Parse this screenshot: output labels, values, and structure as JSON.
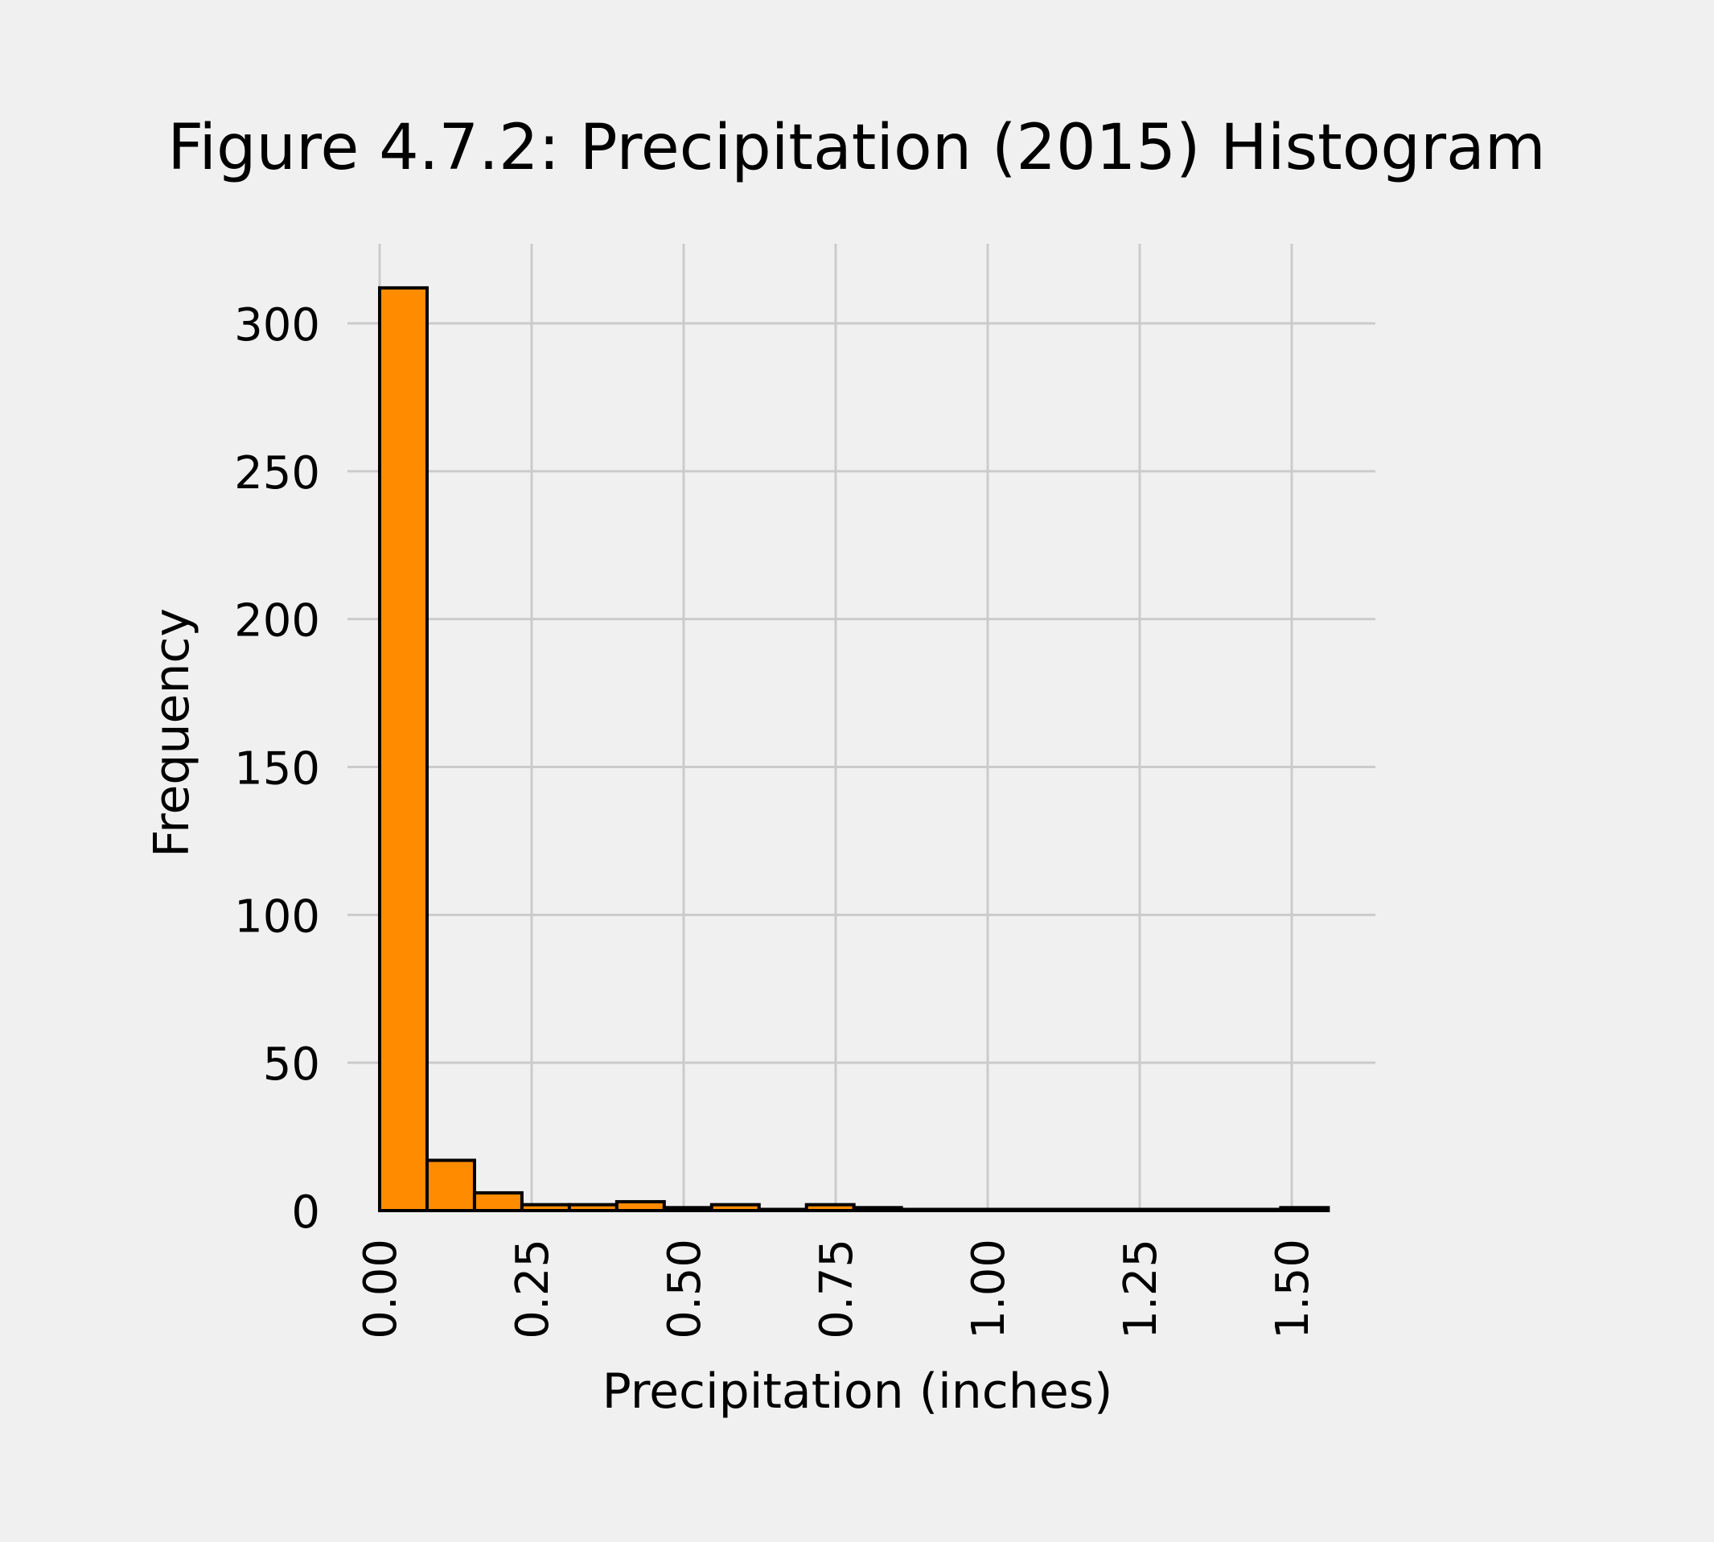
{
  "chart_data": {
    "type": "bar",
    "subtype": "histogram",
    "title": "Figure 4.7.2: Precipitation (2015) Histogram",
    "xlabel": "Precipitation (inches)",
    "ylabel": "Frequency",
    "xlim": [
      0,
      1.6
    ],
    "ylim": [
      0,
      325
    ],
    "grid": true,
    "bar_color": "#ff8c00",
    "edge_color": "#000000",
    "background": "#f0f0f0",
    "grid_color": "#cbcbcb",
    "bin_width": 0.078,
    "bins": [
      {
        "start": 0.0,
        "count": 312
      },
      {
        "start": 0.078,
        "count": 17
      },
      {
        "start": 0.156,
        "count": 6
      },
      {
        "start": 0.234,
        "count": 2
      },
      {
        "start": 0.312,
        "count": 2
      },
      {
        "start": 0.39,
        "count": 3
      },
      {
        "start": 0.468,
        "count": 1
      },
      {
        "start": 0.546,
        "count": 2
      },
      {
        "start": 0.624,
        "count": 0
      },
      {
        "start": 0.702,
        "count": 2
      },
      {
        "start": 0.78,
        "count": 1
      },
      {
        "start": 0.858,
        "count": 0
      },
      {
        "start": 0.936,
        "count": 0
      },
      {
        "start": 1.014,
        "count": 0
      },
      {
        "start": 1.092,
        "count": 0
      },
      {
        "start": 1.17,
        "count": 0
      },
      {
        "start": 1.248,
        "count": 0
      },
      {
        "start": 1.326,
        "count": 0
      },
      {
        "start": 1.404,
        "count": 0
      },
      {
        "start": 1.482,
        "count": 1
      }
    ],
    "x_ticks": [
      {
        "value": 0.0,
        "label": "0.00"
      },
      {
        "value": 0.25,
        "label": "0.25"
      },
      {
        "value": 0.5,
        "label": "0.50"
      },
      {
        "value": 0.75,
        "label": "0.75"
      },
      {
        "value": 1.0,
        "label": "1.00"
      },
      {
        "value": 1.25,
        "label": "1.25"
      },
      {
        "value": 1.5,
        "label": "1.50"
      }
    ],
    "y_ticks": [
      {
        "value": 0,
        "label": "0"
      },
      {
        "value": 50,
        "label": "50"
      },
      {
        "value": 100,
        "label": "100"
      },
      {
        "value": 150,
        "label": "150"
      },
      {
        "value": 200,
        "label": "200"
      },
      {
        "value": 250,
        "label": "250"
      },
      {
        "value": 300,
        "label": "300"
      }
    ]
  }
}
